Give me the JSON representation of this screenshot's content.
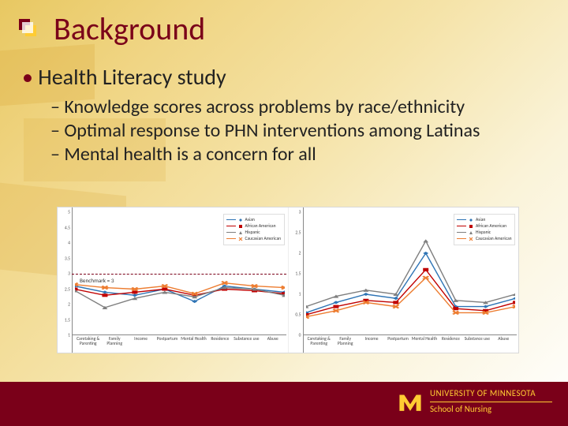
{
  "colors": {
    "maroon": "#7a0019",
    "gold": "#ffcc33",
    "bg_gold_dark": "#d9a83a",
    "bg_gold_light": "#f5e3a8",
    "chart_bg": "#ffffff",
    "axis": "#888888",
    "benchmark_line": "#7a0019"
  },
  "title": "Background",
  "bullets": {
    "lvl1": "Health Literacy study",
    "lvl2": [
      "Knowledge scores across problems by race/ethnicity",
      "Optimal response to PHN interventions among Latinas",
      "Mental health is a concern for all"
    ]
  },
  "categories": [
    "Caretaking & Parenting",
    "Family Planning",
    "Income",
    "Postpartum",
    "Mental Health",
    "Residence",
    "Substance use",
    "Abuse"
  ],
  "series": [
    {
      "name": "Asian",
      "color": "#2e74b5",
      "marker": "diamond"
    },
    {
      "name": "African American",
      "color": "#c00000",
      "marker": "square"
    },
    {
      "name": "Hispanic",
      "color": "#7f7f7f",
      "marker": "triangle"
    },
    {
      "name": "Caucasian American",
      "color": "#ed7d31",
      "marker": "x"
    }
  ],
  "chart_left": {
    "title": "",
    "benchmark_label": "Benchmark = 3",
    "benchmark_value": 3,
    "ylim": [
      1,
      5
    ],
    "ytick_step": 0.5,
    "line_width": 1.4,
    "marker_size": 3.2,
    "values": {
      "Asian": [
        2.6,
        2.4,
        2.3,
        2.5,
        2.1,
        2.6,
        2.5,
        2.4
      ],
      "African American": [
        2.5,
        2.3,
        2.4,
        2.5,
        2.3,
        2.5,
        2.45,
        2.35
      ],
      "Hispanic": [
        2.45,
        1.9,
        2.2,
        2.4,
        2.25,
        2.55,
        2.5,
        2.3
      ],
      "Caucasian American": [
        2.65,
        2.55,
        2.5,
        2.6,
        2.35,
        2.7,
        2.6,
        2.55
      ]
    }
  },
  "chart_right": {
    "title": "",
    "ylim": [
      0,
      3
    ],
    "ytick_step": 0.5,
    "line_width": 1.4,
    "marker_size": 3.2,
    "values": {
      "Asian": [
        0.55,
        0.8,
        1.0,
        0.9,
        2.0,
        0.7,
        0.7,
        0.9
      ],
      "African American": [
        0.5,
        0.7,
        0.85,
        0.8,
        1.6,
        0.65,
        0.6,
        0.8
      ],
      "Hispanic": [
        0.7,
        0.95,
        1.1,
        1.0,
        2.3,
        0.85,
        0.8,
        1.0
      ],
      "Caucasian American": [
        0.45,
        0.6,
        0.8,
        0.7,
        1.4,
        0.55,
        0.55,
        0.7
      ]
    }
  },
  "legend_fontsize": 5.6,
  "footer": {
    "org_line1": "UNIVERSITY OF MINNESOTA",
    "org_line2": "School of Nursing"
  }
}
